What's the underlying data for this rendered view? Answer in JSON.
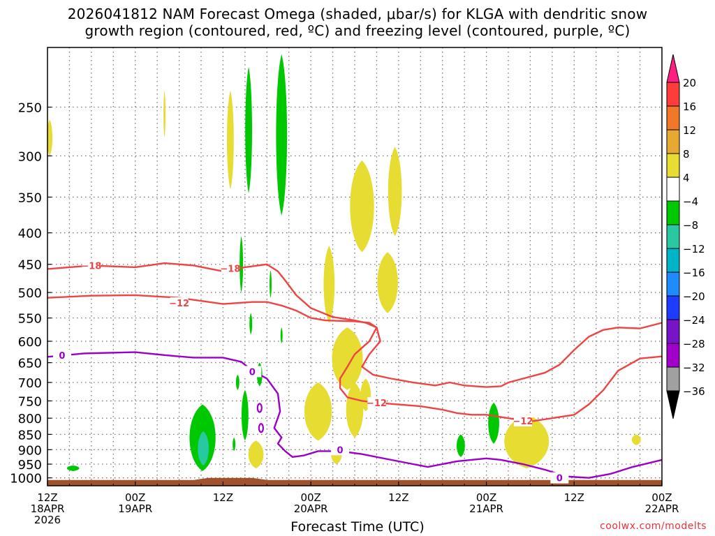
{
  "title_line1": "2026041812 NAM Forecast Omega (shaded, μbar/s) for KLGA with dendritic snow",
  "title_line2": "growth region (contoured, red, ºC) and freezing level (contoured, purple, ºC)",
  "credit": "coolwx.com/modelts",
  "colors": {
    "yellow": "#e6dc32",
    "green": "#00c800",
    "teal": "#28c8a0",
    "ground": "#a0522d",
    "red_contour": "#ee4444",
    "purple_contour": "#9b00c8"
  },
  "chart_data": {
    "type": "heatmap",
    "xlabel": "Forecast Time (UTC)",
    "ylabel": "",
    "xlim": [
      0,
      84
    ],
    "ylim": [
      1030,
      200
    ],
    "y_ticks": [
      250,
      300,
      350,
      400,
      450,
      500,
      550,
      600,
      650,
      700,
      750,
      800,
      850,
      900,
      950,
      1000
    ],
    "x_ticks": [
      {
        "hour": 0,
        "lines": [
          "12Z",
          "18APR",
          "2026"
        ]
      },
      {
        "hour": 12,
        "lines": [
          "00Z",
          "19APR"
        ]
      },
      {
        "hour": 24,
        "lines": [
          "12Z"
        ]
      },
      {
        "hour": 36,
        "lines": [
          "00Z",
          "20APR"
        ]
      },
      {
        "hour": 48,
        "lines": [
          "12Z"
        ]
      },
      {
        "hour": 60,
        "lines": [
          "00Z",
          "21APR"
        ]
      },
      {
        "hour": 72,
        "lines": [
          "12Z"
        ]
      },
      {
        "hour": 84,
        "lines": [
          "00Z",
          "22APR"
        ]
      }
    ],
    "grid": true,
    "colorbar": {
      "labels": [
        "20",
        "16",
        "12",
        "8",
        "4",
        "−4",
        "−8",
        "−12",
        "−16",
        "−20",
        "−24",
        "−28",
        "−32",
        "−36"
      ],
      "colors": [
        "#ff1e82",
        "#ff3c3c",
        "#f07828",
        "#e6aa32",
        "#e6dc32",
        "#ffffff",
        "#00c800",
        "#28c8a0",
        "#00b4c8",
        "#1e8cff",
        "#1e3cff",
        "#7814c8",
        "#a000c8",
        "#a0a0a0",
        "#000000"
      ]
    },
    "omega_regions": [
      {
        "level": "4",
        "hour": 0.3,
        "pmin": 262,
        "pmax": 300,
        "width_h": 0.8
      },
      {
        "level": "4",
        "hour": 16,
        "pmin": 235,
        "pmax": 280,
        "width_h": 0.3
      },
      {
        "level": "4",
        "hour": 25,
        "pmin": 235,
        "pmax": 340,
        "width_h": 1.0
      },
      {
        "level": "-4",
        "hour": 27.5,
        "pmin": 215,
        "pmax": 345,
        "width_h": 1.0
      },
      {
        "level": "-4",
        "hour": 32,
        "pmin": 205,
        "pmax": 375,
        "width_h": 1.6
      },
      {
        "level": "4",
        "hour": 43,
        "pmin": 305,
        "pmax": 430,
        "width_h": 3.5
      },
      {
        "level": "4",
        "hour": 47.5,
        "pmin": 290,
        "pmax": 405,
        "width_h": 2.0
      },
      {
        "level": "4",
        "hour": 38.5,
        "pmin": 420,
        "pmax": 560,
        "width_h": 1.6
      },
      {
        "level": "4",
        "hour": 46.5,
        "pmin": 430,
        "pmax": 540,
        "width_h": 3.0
      },
      {
        "level": "-4",
        "hour": 26.5,
        "pmin": 405,
        "pmax": 500,
        "width_h": 0.5
      },
      {
        "level": "-4",
        "hour": 30.5,
        "pmin": 460,
        "pmax": 510,
        "width_h": 0.3
      },
      {
        "level": "-4",
        "hour": 27.8,
        "pmin": 540,
        "pmax": 585,
        "width_h": 0.4
      },
      {
        "level": "-4",
        "hour": 32,
        "pmin": 570,
        "pmax": 605,
        "width_h": 0.3
      },
      {
        "level": "4",
        "hour": 41,
        "pmin": 570,
        "pmax": 720,
        "width_h": 4.5
      },
      {
        "level": "4",
        "hour": 37,
        "pmin": 700,
        "pmax": 870,
        "width_h": 4.0
      },
      {
        "level": "4",
        "hour": 42,
        "pmin": 700,
        "pmax": 860,
        "width_h": 2.5
      },
      {
        "level": "4",
        "hour": 43.5,
        "pmin": 690,
        "pmax": 780,
        "width_h": 1.5
      },
      {
        "level": "4",
        "hour": 28.5,
        "pmin": 870,
        "pmax": 965,
        "width_h": 2.2
      },
      {
        "level": "4",
        "hour": 39.5,
        "pmin": 880,
        "pmax": 950,
        "width_h": 1.6
      },
      {
        "level": "-4",
        "hour": 29,
        "pmin": 650,
        "pmax": 710,
        "width_h": 0.8
      },
      {
        "level": "-4",
        "hour": 26,
        "pmin": 680,
        "pmax": 720,
        "width_h": 0.5
      },
      {
        "level": "-4",
        "hour": 27,
        "pmin": 720,
        "pmax": 870,
        "width_h": 1.0
      },
      {
        "level": "-4",
        "hour": 25.5,
        "pmin": 860,
        "pmax": 905,
        "width_h": 0.4
      },
      {
        "level": "-4",
        "hour": 21.2,
        "pmin": 760,
        "pmax": 975,
        "width_h": 3.8
      },
      {
        "level": "-8",
        "hour": 21.3,
        "pmin": 840,
        "pmax": 955,
        "width_h": 1.6
      },
      {
        "level": "-4",
        "hour": 3.5,
        "pmin": 955,
        "pmax": 975,
        "width_h": 1.8
      },
      {
        "level": "-4",
        "hour": 56.5,
        "pmin": 850,
        "pmax": 925,
        "width_h": 1.2
      },
      {
        "level": "-4",
        "hour": 61,
        "pmin": 755,
        "pmax": 880,
        "width_h": 1.6
      },
      {
        "level": "4",
        "hour": 65.5,
        "pmin": 790,
        "pmax": 965,
        "width_h": 6.5
      },
      {
        "level": "4",
        "hour": 80.5,
        "pmin": 850,
        "pmax": 885,
        "width_h": 1.3
      }
    ],
    "contours": [
      {
        "kind": "dendritic",
        "label": "−18",
        "points": [
          [
            0,
            458
          ],
          [
            6,
            452
          ],
          [
            12,
            455
          ],
          [
            16,
            448
          ],
          [
            20,
            452
          ],
          [
            24,
            462
          ],
          [
            27,
            455
          ],
          [
            30,
            450
          ],
          [
            31.5,
            462
          ],
          [
            32.5,
            478
          ],
          [
            34,
            505
          ],
          [
            36,
            530
          ],
          [
            39,
            548
          ],
          [
            42,
            555
          ],
          [
            43.5,
            560
          ],
          [
            45,
            570
          ],
          [
            45.5,
            600
          ],
          [
            44,
            630
          ],
          [
            43,
            660
          ],
          [
            44.5,
            680
          ],
          [
            47,
            690
          ],
          [
            50,
            700
          ],
          [
            53,
            708
          ],
          [
            55,
            700
          ],
          [
            57,
            708
          ],
          [
            60,
            712
          ],
          [
            62,
            710
          ],
          [
            63,
            700
          ],
          [
            65,
            690
          ],
          [
            68,
            675
          ],
          [
            70,
            655
          ],
          [
            72,
            620
          ],
          [
            74,
            590
          ],
          [
            76,
            575
          ],
          [
            78,
            570
          ],
          [
            81,
            572
          ],
          [
            84,
            560
          ]
        ],
        "label_at": [
          [
            6,
            452
          ],
          [
            25,
            457
          ]
        ]
      },
      {
        "kind": "dendritic",
        "label": "−12",
        "points": [
          [
            0,
            510
          ],
          [
            6,
            506
          ],
          [
            12,
            505
          ],
          [
            18,
            510
          ],
          [
            24,
            522
          ],
          [
            28,
            518
          ],
          [
            30,
            518
          ],
          [
            32,
            525
          ],
          [
            34,
            535
          ],
          [
            36,
            550
          ],
          [
            38,
            555
          ],
          [
            40,
            556
          ],
          [
            42,
            557
          ],
          [
            44,
            560
          ],
          [
            45,
            570
          ],
          [
            44,
            600
          ],
          [
            42,
            630
          ],
          [
            41,
            660
          ],
          [
            40,
            690
          ],
          [
            40,
            715
          ],
          [
            41,
            740
          ],
          [
            43,
            750
          ],
          [
            45,
            755
          ],
          [
            48,
            760
          ],
          [
            51,
            765
          ],
          [
            54,
            775
          ],
          [
            56,
            785
          ],
          [
            58,
            790
          ],
          [
            60,
            790
          ],
          [
            63,
            800
          ],
          [
            66,
            810
          ],
          [
            69,
            800
          ],
          [
            72,
            790
          ],
          [
            74,
            760
          ],
          [
            76,
            720
          ],
          [
            78,
            670
          ],
          [
            81,
            640
          ],
          [
            84,
            635
          ]
        ],
        "label_at": [
          [
            18,
            520
          ],
          [
            45,
            755
          ],
          [
            65,
            808
          ]
        ]
      },
      {
        "kind": "freezing",
        "label": "0",
        "points": [
          [
            0,
            636
          ],
          [
            5,
            628
          ],
          [
            12,
            625
          ],
          [
            16,
            632
          ],
          [
            20,
            638
          ],
          [
            24,
            638
          ],
          [
            26.5,
            648
          ],
          [
            28,
            670
          ],
          [
            30,
            690
          ],
          [
            31.5,
            730
          ],
          [
            31.8,
            780
          ],
          [
            31,
            830
          ],
          [
            32,
            860
          ],
          [
            31.5,
            880
          ],
          [
            32.5,
            905
          ],
          [
            33.5,
            925
          ],
          [
            35,
            920
          ],
          [
            37,
            905
          ],
          [
            40,
            905
          ],
          [
            43,
            915
          ],
          [
            46,
            930
          ],
          [
            49,
            945
          ],
          [
            52,
            960
          ],
          [
            56,
            940
          ],
          [
            60,
            930
          ],
          [
            62,
            935
          ],
          [
            65,
            950
          ],
          [
            68,
            970
          ],
          [
            71,
            995
          ],
          [
            74,
            1000
          ],
          [
            77,
            985
          ],
          [
            80,
            960
          ],
          [
            84,
            935
          ]
        ],
        "label_at": [
          [
            2,
            632
          ],
          [
            28,
            672
          ],
          [
            40,
            900
          ],
          [
            70,
            1000
          ]
        ]
      }
    ],
    "freezing_extra_loops": [
      {
        "hour": 29,
        "p": 770
      },
      {
        "hour": 29.2,
        "p": 830
      }
    ],
    "ground": {
      "hour_start": 0,
      "hour_end": 84,
      "p_top": 1008,
      "p_bottom": 1030
    }
  }
}
